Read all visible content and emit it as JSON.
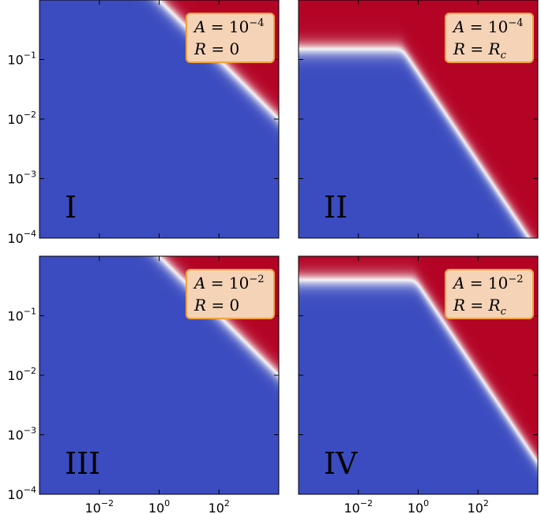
{
  "chart_data": [
    {
      "type": "heatmap",
      "panel_label": "I",
      "annotation": {
        "A_base": "10",
        "A_exp": "−4",
        "R_value": "0",
        "R_sub": ""
      },
      "x_scale": "log",
      "y_scale": "log",
      "xlim": [
        0.0001,
        10000
      ],
      "ylim": [
        0.0001,
        1
      ],
      "x_ticks": [
        0.01,
        1,
        100
      ],
      "y_ticks": [
        0.0001,
        0.001,
        0.01,
        0.1
      ],
      "colormap": [
        "#3b4cc0",
        "#f7f7f7",
        "#b40426"
      ],
      "boundary": {
        "y_floor": null,
        "kink_x": null,
        "slope": -0.5,
        "y_at_x1": 1.0
      }
    },
    {
      "type": "heatmap",
      "panel_label": "II",
      "annotation": {
        "A_base": "10",
        "A_exp": "−4",
        "R_value": "R",
        "R_sub": "c"
      },
      "x_scale": "log",
      "y_scale": "log",
      "xlim": [
        0.0001,
        10000
      ],
      "ylim": [
        0.0001,
        1
      ],
      "x_ticks": [
        0.01,
        1,
        100
      ],
      "y_ticks": [
        0.0001,
        0.001,
        0.01,
        0.1
      ],
      "colormap": [
        "#3b4cc0",
        "#f7f7f7",
        "#b40426"
      ],
      "boundary": {
        "y_floor": 0.15,
        "kink_x": 0.3,
        "slope": -0.75,
        "y_at_x1": 0.06
      }
    },
    {
      "type": "heatmap",
      "panel_label": "III",
      "annotation": {
        "A_base": "10",
        "A_exp": "−2",
        "R_value": "0",
        "R_sub": ""
      },
      "x_scale": "log",
      "y_scale": "log",
      "xlim": [
        0.0001,
        10000
      ],
      "ylim": [
        0.0001,
        1
      ],
      "x_ticks": [
        0.01,
        1,
        100
      ],
      "y_ticks": [
        0.0001,
        0.001,
        0.01,
        0.1
      ],
      "colormap": [
        "#3b4cc0",
        "#f7f7f7",
        "#b40426"
      ],
      "boundary": {
        "y_floor": null,
        "kink_x": null,
        "slope": -0.5,
        "y_at_x1": 1.0
      }
    },
    {
      "type": "heatmap",
      "panel_label": "IV",
      "annotation": {
        "A_base": "10",
        "A_exp": "−2",
        "R_value": "R",
        "R_sub": "c"
      },
      "x_scale": "log",
      "y_scale": "log",
      "xlim": [
        0.0001,
        10000
      ],
      "ylim": [
        0.0001,
        1
      ],
      "x_ticks": [
        0.01,
        1,
        100
      ],
      "y_ticks": [
        0.0001,
        0.001,
        0.01,
        0.1
      ],
      "colormap": [
        "#3b4cc0",
        "#f7f7f7",
        "#b40426"
      ],
      "boundary": {
        "y_floor": 0.4,
        "kink_x": 0.8,
        "slope": -0.75,
        "y_at_x1": 0.34
      }
    }
  ],
  "annotation_text": {
    "A_symbol": "A",
    "R_symbol": "R",
    "equals": " = "
  },
  "tick_labels": {
    "x": [
      {
        "base": "10",
        "exp": "−2"
      },
      {
        "base": "10",
        "exp": "0"
      },
      {
        "base": "10",
        "exp": "2"
      }
    ],
    "y": [
      {
        "base": "10",
        "exp": "−4"
      },
      {
        "base": "10",
        "exp": "−3"
      },
      {
        "base": "10",
        "exp": "−2"
      },
      {
        "base": "10",
        "exp": "−1"
      }
    ]
  },
  "style": {
    "annotation_fill": "#f4d3b7",
    "annotation_stroke": "#f2a23a"
  }
}
